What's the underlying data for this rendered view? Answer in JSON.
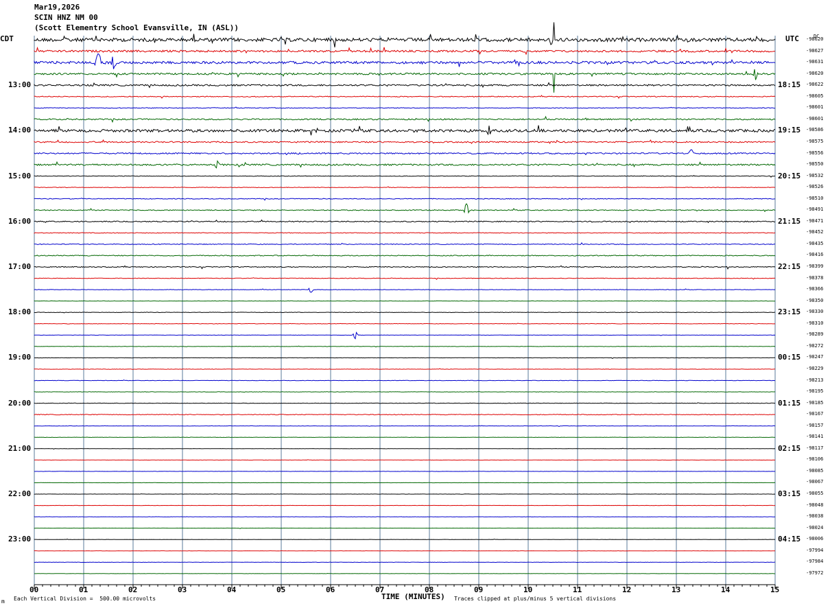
{
  "header": {
    "date": "Mar19,2026",
    "station": "SCIN HNZ NM 00",
    "location": "(Scott Elementry School Evansville, IN (ASL))"
  },
  "left_zone": "CDT",
  "right_zone": "UTC",
  "dc_label": "DC",
  "footer": {
    "scale_note": "Each Vertical Division =  500.00 microvolts",
    "clip_note": "Traces clipped at plus/minus 5 vertical divisions",
    "corner_mark": "m"
  },
  "colors": {
    "trace_cycle": [
      "#000000",
      "#dd0000",
      "#0000cc",
      "#006600"
    ],
    "grid_vertical": "#5a7a9a",
    "axis": "#000000"
  },
  "chart_data": {
    "type": "line",
    "title": "SCIN HNZ NM 00",
    "xlabel": "TIME (MINUTES)",
    "x_ticks": [
      "00",
      "01",
      "02",
      "03",
      "04",
      "05",
      "06",
      "07",
      "08",
      "09",
      "10",
      "11",
      "12",
      "13",
      "14",
      "15"
    ],
    "xlim": [
      0,
      15
    ],
    "rows_per_hour": 4,
    "left_hour_labels": [
      "13:00",
      "14:00",
      "15:00",
      "16:00",
      "17:00",
      "18:00",
      "19:00",
      "20:00",
      "21:00",
      "22:00",
      "23:00"
    ],
    "right_hour_labels": [
      "18:15",
      "19:15",
      "20:15",
      "21:15",
      "22:15",
      "23:15",
      "00:15",
      "01:15",
      "02:15",
      "03:15",
      "04:15"
    ],
    "first_labeled_row": 4,
    "dc_offsets": [
      "-98620",
      "-98627",
      "-98631",
      "-98620",
      "-98622",
      "-98605",
      "-98601",
      "-98601",
      "-98586",
      "-98575",
      "-98556",
      "-98550",
      "-98532",
      "-98526",
      "-98510",
      "-98491",
      "-98471",
      "-98452",
      "-98435",
      "-98416",
      "-98399",
      "-98378",
      "-98366",
      "-98350",
      "-98330",
      "-98310",
      "-98289",
      "-98272",
      "-98247",
      "-98229",
      "-98213",
      "-98195",
      "-98185",
      "-98167",
      "-98157",
      "-98141",
      "-98117",
      "-98106",
      "-98085",
      "-98067",
      "-98055",
      "-98048",
      "-98038",
      "-98024",
      "-98006",
      "-97994",
      "-97984",
      "-97972"
    ],
    "activity_levels": [
      3.2,
      1.8,
      2.2,
      1.6,
      1.4,
      0.8,
      0.6,
      1.2,
      2.4,
      1.2,
      1.2,
      1.4,
      0.5,
      0.5,
      0.6,
      0.8,
      0.9,
      0.6,
      0.7,
      0.8,
      0.8,
      0.5,
      0.4,
      0.3,
      0.4,
      0.4,
      0.3,
      0.3,
      0.3,
      0.3,
      0.3,
      0.3,
      0.4,
      0.6,
      0.3,
      0.3,
      0.2,
      0.2,
      0.2,
      0.2,
      0.2,
      0.2,
      0.2,
      0.2,
      0.2,
      0.2,
      0.3,
      0.2
    ],
    "events": [
      {
        "row": 0,
        "minute": 10.52,
        "amplitude_div": 5,
        "kind": "spike"
      },
      {
        "row": 2,
        "minute": 1.3,
        "amplitude_div": 3,
        "kind": "burst"
      },
      {
        "row": 2,
        "minute": 1.6,
        "amplitude_div": 2,
        "kind": "burst"
      },
      {
        "row": 3,
        "minute": 10.52,
        "amplitude_div": 5,
        "kind": "spike"
      },
      {
        "row": 3,
        "minute": 14.6,
        "amplitude_div": 1.5,
        "kind": "burst"
      },
      {
        "row": 8,
        "minute": 9.2,
        "amplitude_div": 1.2,
        "kind": "burst"
      },
      {
        "row": 10,
        "minute": 13.3,
        "amplitude_div": 1.2,
        "kind": "burst"
      },
      {
        "row": 11,
        "minute": 3.7,
        "amplitude_div": 1,
        "kind": "burst"
      },
      {
        "row": 15,
        "minute": 8.75,
        "amplitude_div": 1.8,
        "kind": "burst"
      },
      {
        "row": 22,
        "minute": 5.6,
        "amplitude_div": 0.8,
        "kind": "burst"
      },
      {
        "row": 26,
        "minute": 6.5,
        "amplitude_div": 1,
        "kind": "burst"
      }
    ]
  }
}
